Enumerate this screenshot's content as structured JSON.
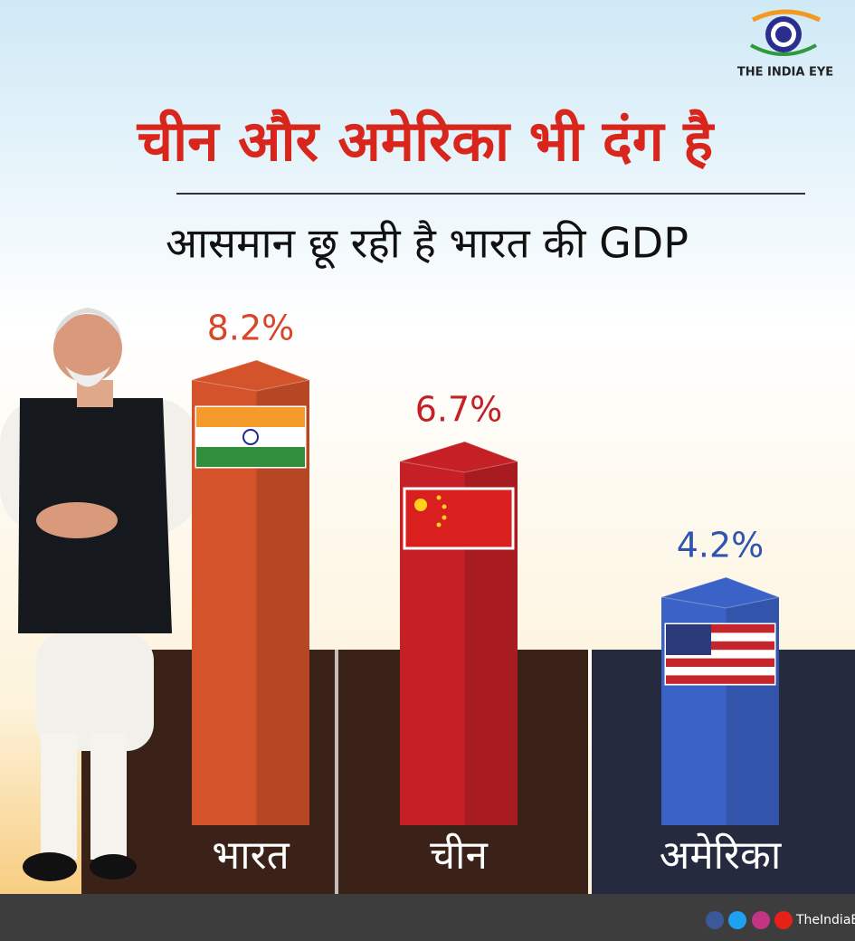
{
  "brand": "THE INDIA EYE",
  "footer": "TheIndiaEye",
  "chart_data": {
    "type": "bar3d",
    "title": "चीन और अमेरिका भी दंग है",
    "subtitle": "आसमान छू रही है भारत की GDP",
    "categories": [
      "भारत",
      "चीन",
      "अमेरिका"
    ],
    "values": [
      8.2,
      6.7,
      4.2
    ],
    "value_labels": [
      "8.2%",
      "6.7%",
      "4.2%"
    ],
    "colors": [
      "#d4532b",
      "#c42026",
      "#3b62c6"
    ],
    "label_colors": [
      "#d9462a",
      "#c42026",
      "#2f55b0"
    ]
  }
}
